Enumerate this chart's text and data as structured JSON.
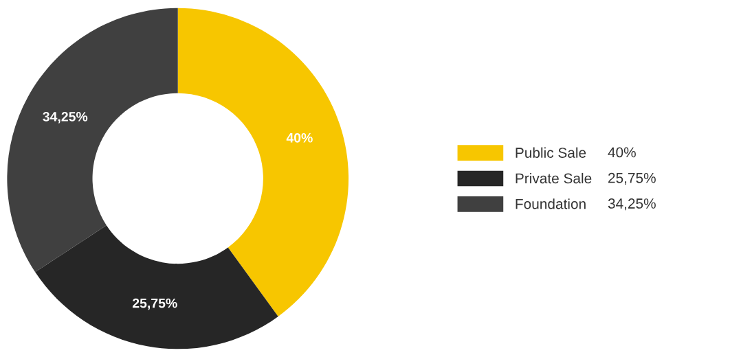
{
  "chart_data": {
    "type": "donut",
    "categories": [
      "Public Sale",
      "Private Sale",
      "Foundation"
    ],
    "values": [
      40,
      25.75,
      34.25
    ],
    "colors": [
      "#f7c600",
      "#262626",
      "#404040"
    ],
    "value_labels": [
      "40%",
      "25,75%",
      "34,25%"
    ],
    "legend": "right"
  }
}
